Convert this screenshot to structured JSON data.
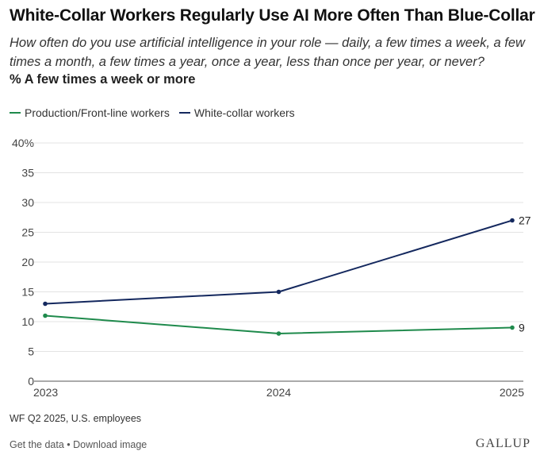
{
  "title": "White-Collar Workers Regularly Use AI More Often Than Blue-Collar",
  "subtitle": "How often do you use artificial intelligence in your role — daily, a few times a week, a few times a month, a few times a year, once a year, less than once per year, or never?",
  "metric_label": "% A few times a week or more",
  "source": "WF Q2 2025, U.S. employees",
  "footer": {
    "get_data": "Get the data",
    "separator": " • ",
    "download": "Download image"
  },
  "brand": "GALLUP",
  "colors": {
    "production": "#1f8a4c",
    "white_collar": "#14285e",
    "grid": "#e3e3e3",
    "axis": "#555555"
  },
  "chart_data": {
    "type": "line",
    "title": "White-Collar Workers Regularly Use AI More Often Than Blue-Collar",
    "xlabel": "",
    "ylabel": "% A few times a week or more",
    "x": [
      "2023",
      "2024",
      "2025"
    ],
    "ylim": [
      0,
      40
    ],
    "yticks": [
      0,
      5,
      10,
      15,
      20,
      25,
      30,
      35,
      40
    ],
    "ytick_labels": [
      "0",
      "5",
      "10",
      "15",
      "20",
      "25",
      "30",
      "35",
      "40%"
    ],
    "legend_position": "top-left",
    "grid": true,
    "series": [
      {
        "name": "Production/Front-line workers",
        "key": "production",
        "values": [
          11,
          8,
          9
        ],
        "end_label": "9"
      },
      {
        "name": "White-collar workers",
        "key": "white_collar",
        "values": [
          13,
          15,
          27
        ],
        "end_label": "27"
      }
    ]
  }
}
